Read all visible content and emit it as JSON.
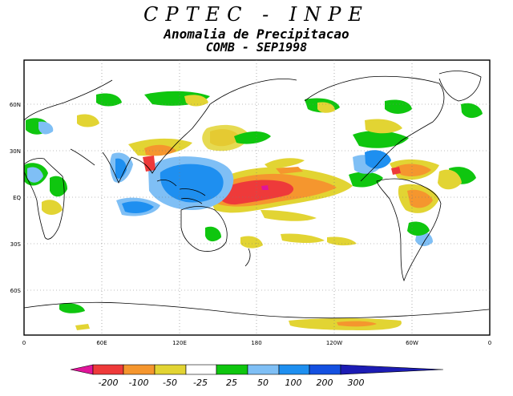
{
  "header": {
    "agency": "CPTEC - INPE",
    "title": "Anomalia de Precipitacao",
    "subtitle": "COMB - SEP1998"
  },
  "map": {
    "projection": "cylindrical",
    "lon_range": [
      0,
      360
    ],
    "lat_range": [
      -90,
      90
    ],
    "grid": true,
    "lat_labels": [
      "60N",
      "30N",
      "EQ",
      "30S",
      "60S"
    ],
    "lon_labels": [
      "0",
      "60E",
      "120E",
      "180",
      "120W",
      "60W",
      "0"
    ]
  },
  "colorbar": {
    "labels": [
      "-200",
      "-100",
      "-50",
      "-25",
      "25",
      "50",
      "100",
      "200",
      "300"
    ],
    "colors": [
      "#e0149a",
      "#ee3a3a",
      "#f5962e",
      "#e2d433",
      "#ffffff",
      "#0fc60f",
      "#7fbff5",
      "#1e8ff0",
      "#1450e0",
      "#1c1cb4"
    ]
  }
}
